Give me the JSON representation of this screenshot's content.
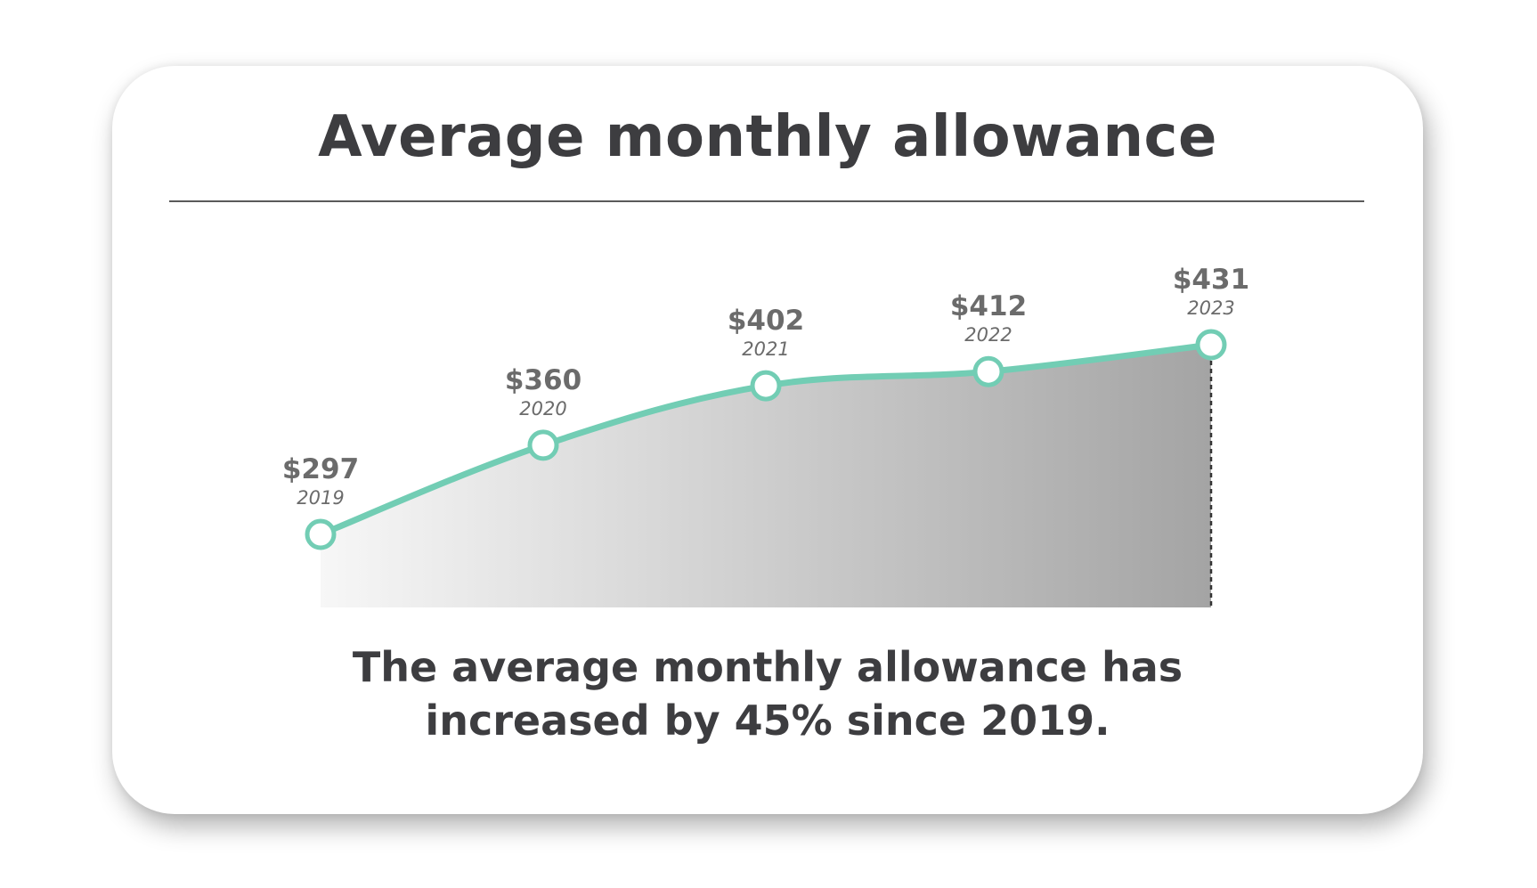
{
  "title": "Average monthly allowance",
  "caption": {
    "line1": "The average monthly allowance has",
    "line2": "increased by 45% since 2019."
  },
  "colors": {
    "line": "#72cdb4",
    "area_start": "#f7f7f7",
    "area_end": "#a4a4a4",
    "value_label": "#6b6b6b",
    "text": "#3d3d40"
  },
  "chart_data": {
    "type": "area",
    "x": [
      "2019",
      "2020",
      "2021",
      "2022",
      "2023"
    ],
    "values": [
      297,
      360,
      402,
      412,
      431
    ],
    "value_labels": [
      "$297",
      "$360",
      "$402",
      "$412",
      "$431"
    ],
    "xlabel": "",
    "ylabel": "",
    "ylim": [
      250,
      450
    ],
    "grid": false,
    "legend": "none"
  }
}
